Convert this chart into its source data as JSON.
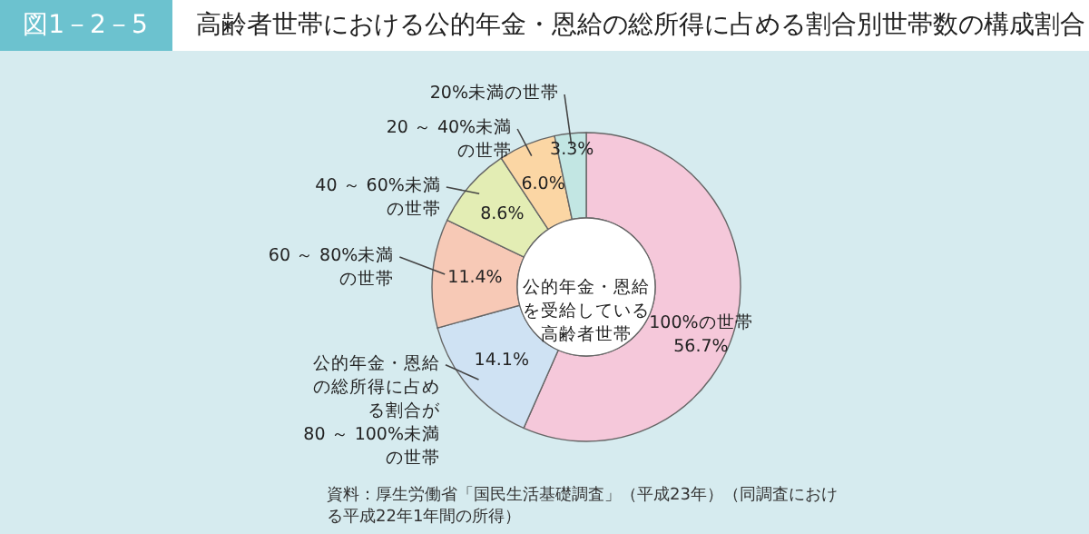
{
  "chart_data": {
    "type": "donut",
    "title": "高齢者世帯における公的年金・恩給の総所得に占める割合別世帯数の構成割合",
    "annotations": [
      "図1－2－5",
      "公的年金・恩給を受給している高齢者世帯",
      "資料：厚生労働省「国民生活基礎調査」（平成23年）（同調査における平成22年1年間の所得）"
    ],
    "categories": [
      "100%の世帯",
      "公的年金・恩給の総所得に占める割合が80 ～ 100%未満の世帯",
      "60 ～ 80%未満の世帯",
      "40 ～ 60%未満の世帯",
      "20 ～ 40%未満の世帯",
      "20%未満の世帯"
    ],
    "values": [
      56.7,
      14.1,
      11.4,
      8.6,
      6.0,
      3.3
    ],
    "value_labels": [
      "56.7%",
      "14.1%",
      "11.4%",
      "8.6%",
      "6.0%",
      "3.3%"
    ],
    "colors": [
      "#f5c8da",
      "#cfe2f3",
      "#f7c9b6",
      "#e3edb4",
      "#fbd6a4",
      "#c2e6e3"
    ]
  }
}
